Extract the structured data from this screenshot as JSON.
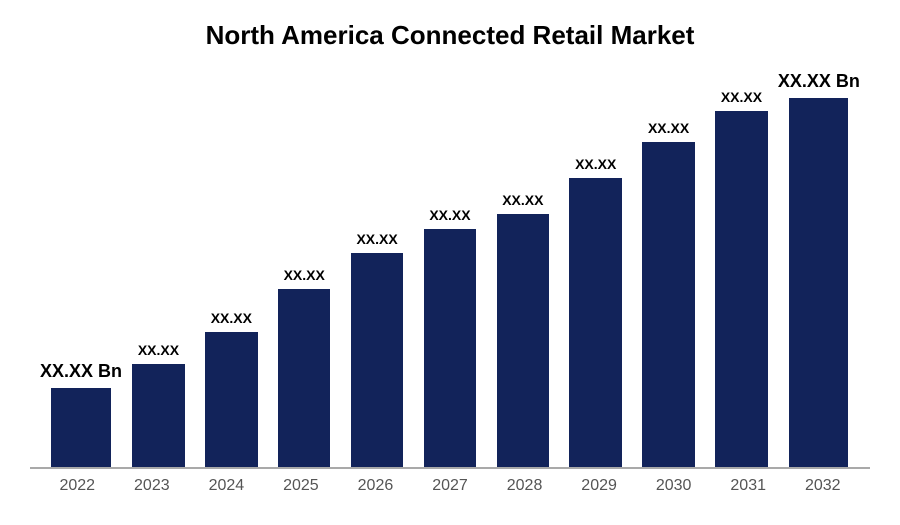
{
  "chart": {
    "type": "bar",
    "title": "North America Connected Retail Market",
    "title_fontsize": 26,
    "title_fontweight": 700,
    "title_color": "#000000",
    "background_color": "#ffffff",
    "bar_color": "#12235a",
    "axis_line_color": "#a9a9a9",
    "x_label_color": "#555555",
    "x_label_fontsize": 16,
    "value_label_fontsize_large": 18,
    "value_label_fontsize_small": 14,
    "value_label_color": "#000000",
    "bar_width_ratio": 0.72,
    "categories": [
      "2022",
      "2023",
      "2024",
      "2025",
      "2026",
      "2027",
      "2028",
      "2029",
      "2030",
      "2031",
      "2032"
    ],
    "values": [
      20,
      26,
      34,
      45,
      54,
      60,
      64,
      73,
      82,
      90,
      95
    ],
    "value_labels": [
      "XX.XX Bn",
      "XX.XX",
      "XX.XX",
      "XX.XX",
      "XX.XX",
      "XX.XX",
      "XX.XX",
      "XX.XX",
      "XX.XX",
      "XX.XX",
      "XX.XX Bn"
    ],
    "label_bold_large": [
      true,
      false,
      false,
      false,
      false,
      false,
      false,
      false,
      false,
      false,
      true
    ],
    "ylim": [
      0,
      100
    ]
  }
}
